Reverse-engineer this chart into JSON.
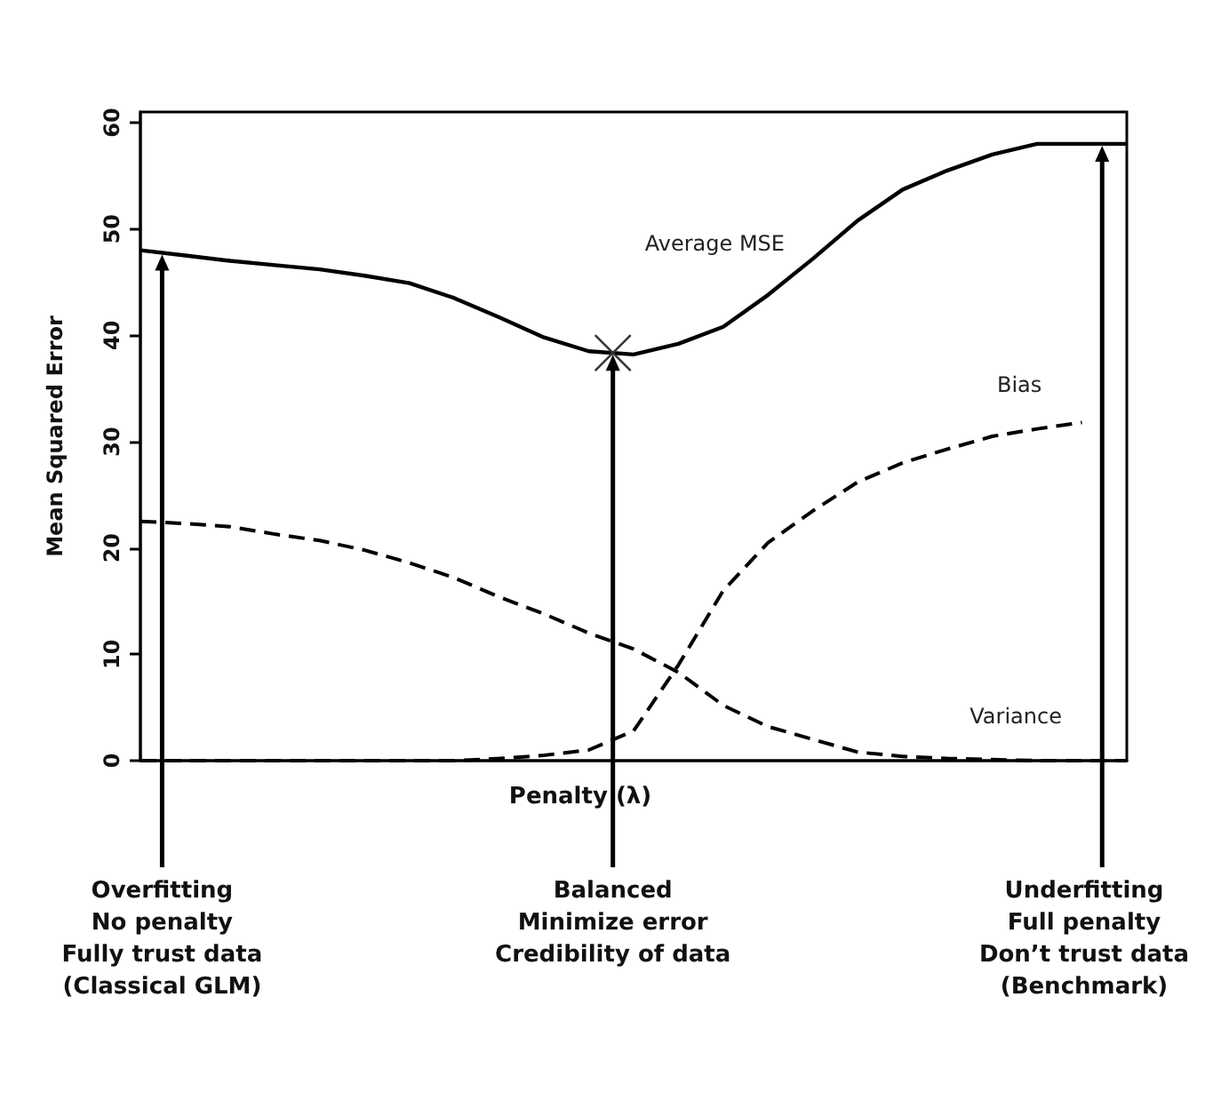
{
  "chart_data": {
    "type": "line",
    "xlabel": "Penalty (λ)",
    "ylabel": "Mean Squared Error",
    "categories": [
      null,
      null,
      null,
      null,
      null,
      null,
      null,
      null,
      null,
      null,
      null,
      null,
      null,
      null,
      null,
      null,
      null,
      null,
      null,
      null,
      null,
      null,
      null
    ],
    "series": [
      {
        "name": "Average MSE",
        "color": "#000000",
        "line_style": "solid",
        "values": [
          48,
          47.5,
          47,
          46.6,
          46.2,
          45.6,
          44.9,
          43.5,
          41.7,
          39.8,
          38.5,
          38.2,
          39.2,
          40.8,
          43.8,
          47.2,
          50.8,
          53.7,
          55.5,
          57,
          58,
          58,
          58
        ]
      },
      {
        "name": "Bias",
        "color": "#000000",
        "line_style": "dashed",
        "values": [
          0,
          0,
          0,
          0,
          0,
          0,
          0,
          0,
          0.2,
          0.5,
          1,
          2.8,
          9,
          16,
          20.5,
          23.5,
          26.2,
          28,
          29.3,
          30.5,
          31.2,
          31.8,
          null
        ]
      },
      {
        "name": "Variance",
        "color": "#000000",
        "line_style": "dashed",
        "values": [
          22.5,
          22.3,
          22,
          21.3,
          20.7,
          19.8,
          18.6,
          17.2,
          15.4,
          13.8,
          12,
          10.5,
          8.3,
          5.2,
          3.2,
          2,
          0.8,
          0.4,
          0.2,
          0.1,
          0,
          0,
          0
        ]
      }
    ],
    "ylim": [
      0,
      61
    ],
    "yticks": [
      0,
      10,
      20,
      30,
      40,
      50,
      60
    ],
    "tick_labels": "y",
    "grid": false,
    "legend": false,
    "marker": "none",
    "annotations": [
      "Overfitting\nNo penalty\nFully trust data\n(Classical GLM)",
      "Balanced\nMinimize error\nCredibility of data",
      "Underfitting\nFull penalty\nDon’t trust data\n(Benchmark)"
    ]
  }
}
